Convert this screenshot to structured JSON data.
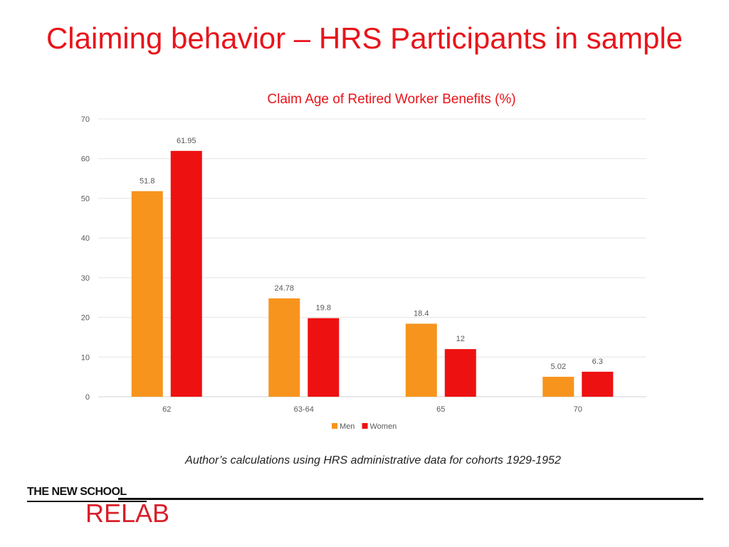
{
  "slide": {
    "title": "Claiming behavior – HRS Participants in sample",
    "caption": "Author’s calculations using HRS administrative data for cohorts 1929-1952",
    "logo": {
      "top_text": "THE NEW SCHOOL",
      "bottom_text": "RELAB"
    }
  },
  "chart_data": {
    "type": "bar",
    "title": "Claim Age of Retired Worker Benefits (%)",
    "xlabel": "",
    "ylabel": "",
    "categories": [
      "62",
      "63-64",
      "65",
      "70"
    ],
    "series": [
      {
        "name": "Men",
        "color": "#f7941d",
        "values": [
          51.8,
          24.78,
          18.4,
          5.02
        ],
        "labels": [
          "51.8",
          "24.78",
          "18.4",
          "5.02"
        ]
      },
      {
        "name": "Women",
        "color": "#ee1111",
        "values": [
          61.95,
          19.8,
          12,
          6.3
        ],
        "labels": [
          "61.95",
          "19.8",
          "12",
          "6.3"
        ]
      }
    ],
    "ylim": [
      0,
      70
    ],
    "yticks": [
      0,
      10,
      20,
      30,
      40,
      50,
      60,
      70
    ],
    "grid": true,
    "legend": "bottom-center"
  }
}
